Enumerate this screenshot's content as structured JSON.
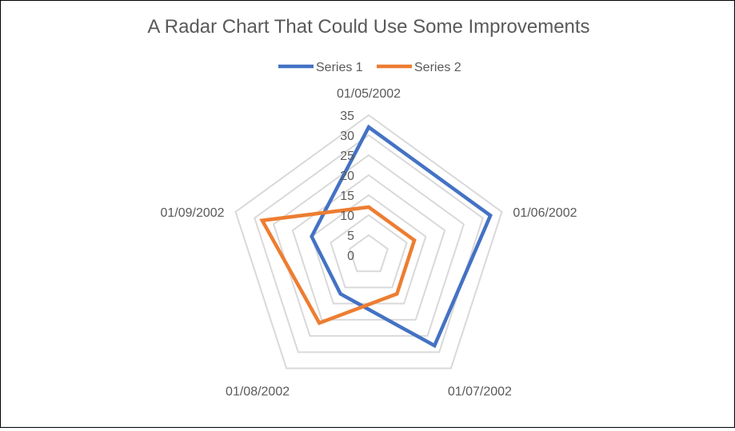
{
  "chart_data": {
    "type": "radar",
    "title": "A Radar Chart That Could Use Some Improvements",
    "categories": [
      "01/05/2002",
      "01/06/2002",
      "01/07/2002",
      "01/08/2002",
      "01/09/2002"
    ],
    "series": [
      {
        "name": "Series 1",
        "color": "#4472C4",
        "values": [
          32,
          32,
          28,
          12,
          15
        ]
      },
      {
        "name": "Series 2",
        "color": "#ED7D31",
        "values": [
          12,
          12,
          12,
          21,
          28
        ]
      }
    ],
    "axis": {
      "min": 0,
      "max": 35,
      "step": 5,
      "ticks": [
        "0",
        "5",
        "10",
        "15",
        "20",
        "25",
        "30",
        "35"
      ]
    },
    "grid": true,
    "legend": "top"
  }
}
